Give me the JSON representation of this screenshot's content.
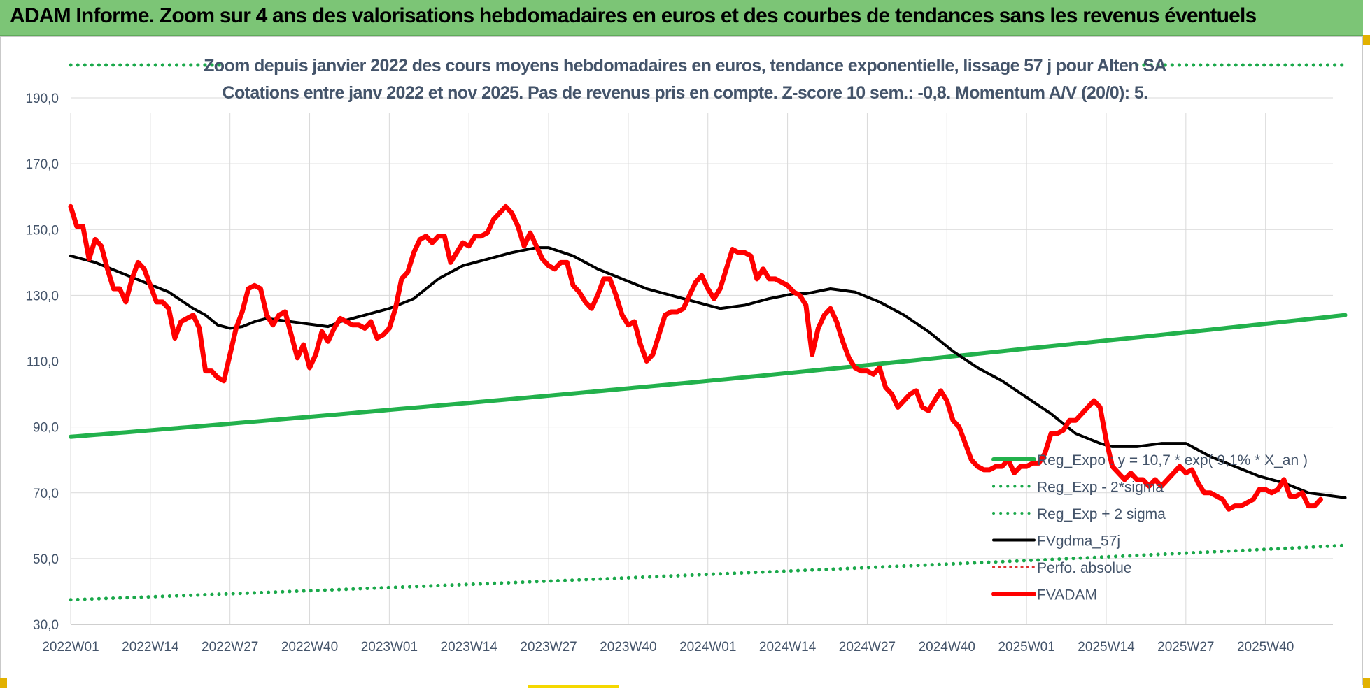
{
  "banner": {
    "title": "ADAM Informe. Zoom sur 4 ans des valorisations hebdomadaires en euros et des courbes de tendances sans les revenus éventuels"
  },
  "colors": {
    "banner_bg": "#7cc576",
    "title_text": "#44546a",
    "grid": "#d9d9d9",
    "axis_text": "#44546a",
    "reg_expo": "#22b14c",
    "reg_sigma": "#1aa84a",
    "fvgdma": "#000000",
    "perfo": "#e03030",
    "fvadam": "#ff0000"
  },
  "chart_data": {
    "type": "line",
    "title": "Zoom depuis janvier 2022 des cours moyens hebdomadaires en euros, tendance exponentielle, lissage 57 j pour Alten SA",
    "subtitle": "Cotations entre janv 2022 et nov 2025. Pas de revenus pris en compte. Z-score 10 sem.: -0,8. Momentum A/V (20/0): 5.",
    "xlabel": "",
    "ylabel": "",
    "ylim": [
      30,
      200
    ],
    "y_ticks": [
      "30,0",
      "50,0",
      "70,0",
      "90,0",
      "110,0",
      "130,0",
      "150,0",
      "170,0",
      "190,0"
    ],
    "x_ticks": [
      "2022W01",
      "2022W14",
      "2022W27",
      "2022W40",
      "2023W01",
      "2023W14",
      "2023W27",
      "2023W40",
      "2024W01",
      "2024W14",
      "2024W27",
      "2024W40",
      "2025W01",
      "2025W14",
      "2025W27",
      "2025W40"
    ],
    "grid": true,
    "legend_position": "bottom-right",
    "series": [
      {
        "name": "Reg_Expo : y = 10,7 * exp( 9,1% *  X_an )",
        "style": "solid-thick",
        "points": [
          [
            0,
            87
          ],
          [
            52,
            95.2
          ],
          [
            104,
            104
          ],
          [
            156,
            113.8
          ],
          [
            208,
            124
          ]
        ]
      },
      {
        "name": "Reg_Exp - 2*sigma",
        "style": "dotted",
        "points": [
          [
            0,
            37.5
          ],
          [
            52,
            41.2
          ],
          [
            104,
            45.2
          ],
          [
            156,
            49.4
          ],
          [
            208,
            54
          ]
        ]
      },
      {
        "name": "Reg_Exp + 2 sigma",
        "style": "dotted",
        "points": [
          [
            0,
            200
          ],
          [
            25,
            200
          ],
          [
            174,
            200
          ],
          [
            208,
            200
          ]
        ]
      },
      {
        "name": "FVgdma_57j",
        "style": "solid",
        "points": [
          [
            0,
            142
          ],
          [
            4,
            140
          ],
          [
            8,
            137
          ],
          [
            12,
            134
          ],
          [
            16,
            131
          ],
          [
            20,
            126
          ],
          [
            22,
            124
          ],
          [
            24,
            121
          ],
          [
            26,
            120
          ],
          [
            28,
            120.5
          ],
          [
            30,
            122
          ],
          [
            32,
            123
          ],
          [
            36,
            122
          ],
          [
            40,
            121
          ],
          [
            42,
            120.5
          ],
          [
            44,
            122
          ],
          [
            48,
            124
          ],
          [
            52,
            126
          ],
          [
            56,
            129
          ],
          [
            60,
            135
          ],
          [
            64,
            139
          ],
          [
            68,
            141
          ],
          [
            72,
            143
          ],
          [
            76,
            144.5
          ],
          [
            78,
            144.5
          ],
          [
            82,
            142
          ],
          [
            86,
            138
          ],
          [
            90,
            135
          ],
          [
            94,
            132
          ],
          [
            98,
            130
          ],
          [
            102,
            128
          ],
          [
            106,
            126
          ],
          [
            110,
            127
          ],
          [
            114,
            129
          ],
          [
            118,
            130.5
          ],
          [
            120,
            130.5
          ],
          [
            124,
            132
          ],
          [
            128,
            131
          ],
          [
            132,
            128
          ],
          [
            136,
            124
          ],
          [
            140,
            119
          ],
          [
            144,
            113
          ],
          [
            148,
            108
          ],
          [
            152,
            104
          ],
          [
            156,
            99
          ],
          [
            160,
            94
          ],
          [
            164,
            88
          ],
          [
            168,
            85
          ],
          [
            170,
            84
          ],
          [
            174,
            84
          ],
          [
            178,
            85
          ],
          [
            182,
            85
          ],
          [
            186,
            81
          ],
          [
            190,
            78
          ],
          [
            194,
            75
          ],
          [
            198,
            73
          ],
          [
            202,
            70
          ],
          [
            206,
            69
          ],
          [
            208,
            68.5
          ]
        ]
      },
      {
        "name": "Perfo. absolue",
        "style": "dotted",
        "points": []
      },
      {
        "name": "FVADAM",
        "style": "solid-thick",
        "points": [
          [
            0,
            157
          ],
          [
            1,
            151
          ],
          [
            2,
            151
          ],
          [
            3,
            141
          ],
          [
            4,
            147
          ],
          [
            5,
            145
          ],
          [
            6,
            138
          ],
          [
            7,
            132
          ],
          [
            8,
            132
          ],
          [
            9,
            128
          ],
          [
            10,
            135
          ],
          [
            11,
            140
          ],
          [
            12,
            138
          ],
          [
            13,
            133
          ],
          [
            14,
            128
          ],
          [
            15,
            128
          ],
          [
            16,
            126
          ],
          [
            17,
            117
          ],
          [
            18,
            122
          ],
          [
            19,
            123
          ],
          [
            20,
            124
          ],
          [
            21,
            120
          ],
          [
            22,
            107
          ],
          [
            23,
            107
          ],
          [
            24,
            105
          ],
          [
            25,
            104
          ],
          [
            26,
            112
          ],
          [
            27,
            120
          ],
          [
            28,
            125
          ],
          [
            29,
            132
          ],
          [
            30,
            133
          ],
          [
            31,
            132
          ],
          [
            32,
            124
          ],
          [
            33,
            121
          ],
          [
            34,
            124
          ],
          [
            35,
            125
          ],
          [
            36,
            118
          ],
          [
            37,
            111
          ],
          [
            38,
            115
          ],
          [
            39,
            108
          ],
          [
            40,
            112
          ],
          [
            41,
            119
          ],
          [
            42,
            116
          ],
          [
            43,
            120
          ],
          [
            44,
            123
          ],
          [
            45,
            122
          ],
          [
            46,
            121
          ],
          [
            47,
            121
          ],
          [
            48,
            120
          ],
          [
            49,
            122
          ],
          [
            50,
            117
          ],
          [
            51,
            118
          ],
          [
            52,
            120
          ],
          [
            53,
            126
          ],
          [
            54,
            135
          ],
          [
            55,
            137
          ],
          [
            56,
            143
          ],
          [
            57,
            147
          ],
          [
            58,
            148
          ],
          [
            59,
            146
          ],
          [
            60,
            148
          ],
          [
            61,
            148
          ],
          [
            62,
            140
          ],
          [
            63,
            143
          ],
          [
            64,
            146
          ],
          [
            65,
            145
          ],
          [
            66,
            148
          ],
          [
            67,
            148
          ],
          [
            68,
            149
          ],
          [
            69,
            153
          ],
          [
            70,
            155
          ],
          [
            71,
            157
          ],
          [
            72,
            155
          ],
          [
            73,
            151
          ],
          [
            74,
            145
          ],
          [
            75,
            149
          ],
          [
            76,
            145
          ],
          [
            77,
            141
          ],
          [
            78,
            139
          ],
          [
            79,
            138
          ],
          [
            80,
            140
          ],
          [
            81,
            140
          ],
          [
            82,
            133
          ],
          [
            83,
            131
          ],
          [
            84,
            128
          ],
          [
            85,
            126
          ],
          [
            86,
            130
          ],
          [
            87,
            135
          ],
          [
            88,
            135
          ],
          [
            89,
            130
          ],
          [
            90,
            124
          ],
          [
            91,
            121
          ],
          [
            92,
            122
          ],
          [
            93,
            115
          ],
          [
            94,
            110
          ],
          [
            95,
            112
          ],
          [
            96,
            118
          ],
          [
            97,
            124
          ],
          [
            98,
            125
          ],
          [
            99,
            125
          ],
          [
            100,
            126
          ],
          [
            101,
            130
          ],
          [
            102,
            134
          ],
          [
            103,
            136
          ],
          [
            104,
            132
          ],
          [
            105,
            129
          ],
          [
            106,
            132
          ],
          [
            107,
            138
          ],
          [
            108,
            144
          ],
          [
            109,
            143
          ],
          [
            110,
            143
          ],
          [
            111,
            142
          ],
          [
            112,
            135
          ],
          [
            113,
            138
          ],
          [
            114,
            135
          ],
          [
            115,
            135
          ],
          [
            116,
            134
          ],
          [
            117,
            133
          ],
          [
            118,
            131
          ],
          [
            119,
            130
          ],
          [
            120,
            127
          ],
          [
            121,
            112
          ],
          [
            122,
            120
          ],
          [
            123,
            124
          ],
          [
            124,
            126
          ],
          [
            125,
            122
          ],
          [
            126,
            116
          ],
          [
            127,
            111
          ],
          [
            128,
            108
          ],
          [
            129,
            107
          ],
          [
            130,
            107
          ],
          [
            131,
            106
          ],
          [
            132,
            108
          ],
          [
            133,
            102
          ],
          [
            134,
            100
          ],
          [
            135,
            96
          ],
          [
            136,
            98
          ],
          [
            137,
            100
          ],
          [
            138,
            101
          ],
          [
            139,
            96
          ],
          [
            140,
            95
          ],
          [
            141,
            98
          ],
          [
            142,
            101
          ],
          [
            143,
            98
          ],
          [
            144,
            92
          ],
          [
            145,
            90
          ],
          [
            146,
            85
          ],
          [
            147,
            80
          ],
          [
            148,
            78
          ],
          [
            149,
            77
          ],
          [
            150,
            77
          ],
          [
            151,
            78
          ],
          [
            152,
            78
          ],
          [
            153,
            80
          ],
          [
            154,
            76
          ],
          [
            155,
            78
          ],
          [
            156,
            78
          ],
          [
            157,
            79
          ],
          [
            158,
            79
          ],
          [
            159,
            82
          ],
          [
            160,
            88
          ],
          [
            161,
            88
          ],
          [
            162,
            89
          ],
          [
            163,
            92
          ],
          [
            164,
            92
          ],
          [
            165,
            94
          ],
          [
            166,
            96
          ],
          [
            167,
            98
          ],
          [
            168,
            96
          ],
          [
            169,
            86
          ],
          [
            170,
            78
          ],
          [
            171,
            76
          ],
          [
            172,
            74
          ],
          [
            173,
            76
          ],
          [
            174,
            74
          ],
          [
            175,
            74
          ],
          [
            176,
            72
          ],
          [
            177,
            74
          ],
          [
            178,
            72
          ],
          [
            179,
            74
          ],
          [
            180,
            76
          ],
          [
            181,
            78
          ],
          [
            182,
            76
          ],
          [
            183,
            77
          ],
          [
            184,
            73
          ],
          [
            185,
            70
          ],
          [
            186,
            70
          ],
          [
            187,
            69
          ],
          [
            188,
            68
          ],
          [
            189,
            65
          ],
          [
            190,
            66
          ],
          [
            191,
            66
          ],
          [
            192,
            67
          ],
          [
            193,
            68
          ],
          [
            194,
            71
          ],
          [
            195,
            71
          ],
          [
            196,
            70
          ],
          [
            197,
            71
          ],
          [
            198,
            74
          ],
          [
            199,
            69
          ],
          [
            200,
            69
          ],
          [
            201,
            70
          ],
          [
            202,
            66
          ],
          [
            203,
            66
          ],
          [
            204,
            68
          ]
        ]
      }
    ]
  }
}
